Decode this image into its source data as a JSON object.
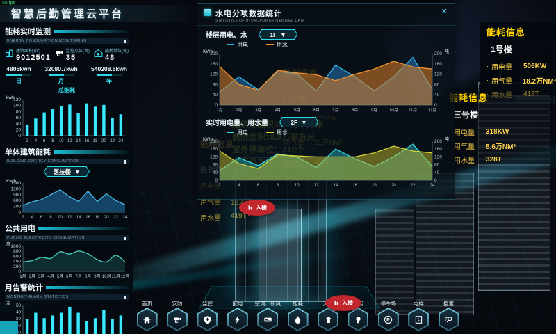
{
  "fps": "55 fps",
  "header": {
    "title": "智慧后勤管理云平台"
  },
  "left_panel": {
    "section1": {
      "title": "能耗实时监测",
      "subtitle": "ENERGY CONSUMPTION MONITORING"
    },
    "stats": [
      {
        "icon": "building-area-icon",
        "label": "建筑面积(m²)",
        "value": "9012501"
      },
      {
        "icon": "camera-icon",
        "label": "监控点位(台)",
        "value": "35"
      },
      {
        "icon": "house-energy-icon",
        "label": "能耗单位(栋)",
        "value": "48"
      }
    ],
    "totals": [
      {
        "value": "4805kwh",
        "period": "日"
      },
      {
        "value": "32080.7kwh",
        "period": "月"
      },
      {
        "value": "540208.6kwh",
        "period": "年"
      }
    ],
    "chart1_title": "总能耗",
    "section2": {
      "title": "单体建筑能耗",
      "subtitle": "BUILDING ENERGY CONSUMPTION",
      "dropdown": "医技楼"
    },
    "section3": {
      "title": "公共用电",
      "subtitle": "PUBLIC ELECTRICITY CONSUMPTION"
    },
    "section4": {
      "title": "月告警统计",
      "subtitle": "MONTHLY ALARM STATISTICS"
    }
  },
  "modal": {
    "title": "水电分项数据统计",
    "subtitle": "STATISTICS OF HYDROPOWER ITEMIZED DATA",
    "close": "✕",
    "sectionA": {
      "label": "楼层用电、水",
      "dropdown": "1F"
    },
    "sectionB": {
      "label": "实时用电量、用水量",
      "dropdown": "2F"
    }
  },
  "scene_labels": {
    "group1": {
      "title": "能耗信息",
      "building": "门诊楼",
      "rows": [
        [
          "用电量",
          "525KW"
        ],
        [
          "用气量",
          "21万NM³"
        ],
        [
          "用水量",
          "506T"
        ]
      ]
    },
    "group2": {
      "title": "能耗信息",
      "building": "医技楼",
      "rows": [
        [
          "用电量",
          ""
        ],
        [
          "用气量",
          "12.4万NM³"
        ],
        [
          "用水量",
          "419T"
        ]
      ]
    },
    "facts": [
      "建筑总面积36.6万平方米",
      "医院面积18.9万平方米",
      "室外停车位：210个",
      "地下停车位：8"
    ]
  },
  "right_panels": [
    {
      "title": "能耗信息",
      "building": "1号楼",
      "rows": [
        [
          "用电量",
          "506KW"
        ],
        [
          "用气量",
          "18.2万NM³"
        ],
        [
          "用水量",
          "418T"
        ]
      ]
    },
    {
      "title": "能耗信息",
      "building": "三号楼",
      "rows": [
        [
          "用电量",
          "318KW"
        ],
        [
          "用气量",
          "8.6万NM³"
        ],
        [
          "用水量",
          "328T"
        ]
      ]
    }
  ],
  "markers": {
    "enter_label": "入楼"
  },
  "nav": {
    "items": [
      {
        "icon": "home-icon",
        "label": "首页"
      },
      {
        "icon": "camera-icon",
        "label": "安防"
      },
      {
        "icon": "shield-icon",
        "label": "监控"
      },
      {
        "icon": "bolt-icon",
        "label": "配电"
      },
      {
        "icon": "ac-icon",
        "label": "空调、新风"
      },
      {
        "icon": "drop-icon",
        "label": "能耗"
      },
      {
        "icon": "hydrant-icon",
        "label": "消防"
      },
      {
        "icon": "bulb-icon",
        "label": "照明"
      },
      {
        "icon": "parking-icon",
        "label": "停车场"
      },
      {
        "icon": "elevator-icon",
        "label": "电梯"
      },
      {
        "icon": "search-icon",
        "label": "搜索"
      }
    ]
  },
  "chart_data": [
    {
      "type": "bar",
      "title": "总能耗",
      "unit": "kwh",
      "categories": [
        "2",
        "4",
        "6",
        "8",
        "10",
        "12",
        "14",
        "16",
        "18",
        "20",
        "22",
        "24"
      ],
      "values": [
        37,
        57,
        77,
        88,
        97,
        103,
        76,
        107,
        96,
        102,
        60,
        71
      ],
      "ylim": [
        0,
        120
      ],
      "yticks": [
        0,
        20,
        40,
        60,
        80,
        100,
        120
      ],
      "color": "#3ae8ff"
    },
    {
      "type": "area",
      "title": "单体建筑能耗",
      "unit": "Kw/h",
      "categories": [
        "2",
        "4",
        "6",
        "8",
        "10",
        "12",
        "14",
        "16",
        "18",
        "20",
        "22",
        "24"
      ],
      "values": [
        350,
        530,
        650,
        900,
        1150,
        800,
        550,
        1080,
        550,
        950,
        600,
        380
      ],
      "ylim": [
        0,
        1500
      ],
      "yticks": [
        0,
        300,
        600,
        900,
        1200,
        1500
      ],
      "color": "#4db8e8",
      "fill": "rgba(32,110,165,0.58)",
      "smooth": false
    },
    {
      "type": "area",
      "title": "公共用电",
      "unit": "度",
      "categories": [
        "1月",
        "2月",
        "3月",
        "4月",
        "5月",
        "6月",
        "7月",
        "8月",
        "9月",
        "10月",
        "11月",
        "12月"
      ],
      "values": [
        380,
        430,
        560,
        520,
        780,
        690,
        810,
        700,
        470,
        380,
        640,
        380
      ],
      "ylim": [
        0,
        1000
      ],
      "yticks": [
        0,
        200,
        400,
        600,
        800,
        1000
      ],
      "color": "#49cfc0",
      "fill": "rgba(45,150,140,0.25)",
      "smooth": true
    },
    {
      "type": "bar",
      "title": "月告警统计",
      "unit": "次",
      "categories": [
        "1月",
        "2月",
        "3月",
        "4月",
        "5月",
        "6月",
        "7月",
        "8月",
        "9月",
        "10月",
        "11月",
        "12月"
      ],
      "values": [
        30,
        39,
        31,
        35,
        39,
        48,
        39,
        27,
        31,
        43,
        30,
        35
      ],
      "ylim": [
        0,
        50
      ],
      "yticks": [
        0,
        10,
        20,
        30,
        40,
        50
      ],
      "color": "#3ae8ff"
    },
    {
      "type": "dual-area",
      "title": "楼层用电、水",
      "unit_left": "KWh",
      "unit_right": "吨",
      "categories": [
        "1月",
        "2月",
        "3月",
        "4月",
        "5月",
        "6月",
        "7月",
        "8月",
        "9月",
        "10月",
        "11月",
        "12月"
      ],
      "ylim": [
        0,
        200
      ],
      "yticks": [
        0,
        40,
        80,
        120,
        160,
        200
      ],
      "series": [
        {
          "name": "用电",
          "color": "#33b5e5",
          "fill": "rgba(40,130,200,0.5)",
          "values": [
            50,
            110,
            60,
            130,
            122,
            55,
            155,
            110,
            55,
            110,
            185,
            60
          ]
        },
        {
          "name": "用水",
          "color": "#f0922f",
          "fill": "rgba(220,130,40,0.55)",
          "values": [
            150,
            80,
            58,
            135,
            125,
            118,
            95,
            120,
            140,
            170,
            148,
            140
          ]
        }
      ]
    },
    {
      "type": "dual-area",
      "title": "实时用电量、用水量",
      "unit_left": "KWh",
      "unit_right": "吨",
      "categories": [
        "2",
        "4",
        "6",
        "8",
        "10",
        "12",
        "14",
        "16",
        "18",
        "20",
        "22",
        "24"
      ],
      "ylim": [
        0,
        200
      ],
      "yticks": [
        0,
        40,
        80,
        120,
        160,
        200
      ],
      "series": [
        {
          "name": "用电",
          "color": "#35dde0",
          "fill": "rgba(40,180,190,0.45)",
          "values": [
            50,
            115,
            75,
            135,
            120,
            65,
            160,
            110,
            70,
            120,
            185,
            70
          ]
        },
        {
          "name": "用水",
          "color": "#d8d433",
          "fill": "rgba(190,185,45,0.5)",
          "values": [
            150,
            85,
            60,
            130,
            125,
            120,
            120,
            120,
            140,
            175,
            150,
            140
          ]
        }
      ]
    }
  ]
}
